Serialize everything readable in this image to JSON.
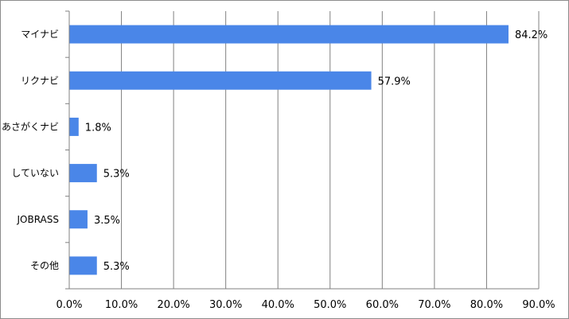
{
  "chart_data": {
    "type": "bar",
    "orientation": "horizontal",
    "categories": [
      "マイナビ",
      "リクナビ",
      "あさがくナビ",
      "していない",
      "JOBRASS",
      "その他"
    ],
    "values": [
      84.2,
      57.9,
      1.8,
      5.3,
      3.5,
      5.3
    ],
    "data_labels": [
      "84.2%",
      "57.9%",
      "1.8%",
      "5.3%",
      "3.5%",
      "5.3%"
    ],
    "xlim": [
      0,
      90
    ],
    "x_ticks": [
      0,
      10,
      20,
      30,
      40,
      50,
      60,
      70,
      80,
      90
    ],
    "x_tick_labels": [
      "0.0%",
      "10.0%",
      "20.0%",
      "30.0%",
      "40.0%",
      "50.0%",
      "60.0%",
      "70.0%",
      "80.0%",
      "90.0%"
    ],
    "grid": "vertical",
    "bar_color": "#4a86e8",
    "grid_color": "#808080"
  }
}
